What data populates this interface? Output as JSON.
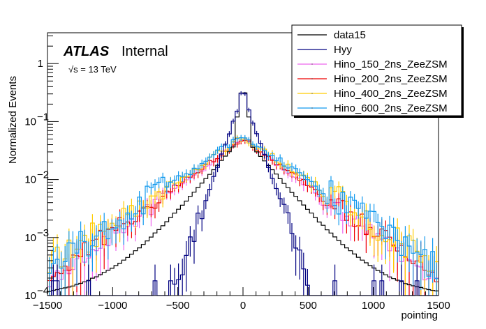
{
  "chart_data": {
    "type": "line",
    "subtype": "step-histogram",
    "title": "",
    "xlabel": "pointing",
    "ylabel": "Normalized Events",
    "xlim": [
      -1500,
      1500
    ],
    "ylim": [
      0.0001,
      3.4
    ],
    "yscale": "log",
    "grid": false,
    "bin_width": 30,
    "x_ticks": [
      "-1500",
      "-1000",
      "-500",
      "0",
      "500",
      "1000",
      "1500"
    ],
    "x_tick_values": [
      -1500,
      -1000,
      -500,
      0,
      500,
      1000,
      1500
    ],
    "y_ticks": [
      {
        "value": 0.0001,
        "base": "10",
        "exp": "-4"
      },
      {
        "value": 0.001,
        "base": "10",
        "exp": "-3"
      },
      {
        "value": 0.01,
        "base": "10",
        "exp": "-2"
      },
      {
        "value": 0.1,
        "base": "10",
        "exp": "-1"
      },
      {
        "value": 1,
        "base": "1",
        "exp": ""
      }
    ],
    "annotations": {
      "experiment": "ATLAS",
      "status": "Internal",
      "energy_sqrt": "√s",
      "energy_rest": " = 13 TeV"
    },
    "legend_position": "top-right",
    "series": [
      {
        "name": "data15",
        "color": "#000000",
        "shape": "laplace",
        "peak": 0.31,
        "peak_core": 0.055,
        "core_slope": 160,
        "tail_slope": 330,
        "tail_floor": 0.00011,
        "noise": 0.03,
        "errors": false
      },
      {
        "name": "Hyy",
        "color": "#000080",
        "shape": "narrow",
        "peak": 0.31,
        "slope": 68,
        "floor": 0.0001,
        "noise": 0.12,
        "errors": true
      },
      {
        "name": "Hino_150_2ns_ZeeZSM",
        "color": "#ee66ee",
        "shape": "laplace",
        "peak": 0.05,
        "slope": 265,
        "floor": 0.0003,
        "noise": 0.18,
        "errors": true
      },
      {
        "name": "Hino_200_2ns_ZeeZSM",
        "color": "#ee0000",
        "shape": "laplace",
        "peak": 0.05,
        "slope": 275,
        "floor": 0.0003,
        "noise": 0.18,
        "errors": true
      },
      {
        "name": "Hino_400_2ns_ZeeZSM",
        "color": "#ffcc00",
        "shape": "laplace",
        "peak": 0.055,
        "slope": 290,
        "floor": 0.0003,
        "noise": 0.28,
        "errors": true
      },
      {
        "name": "Hino_600_2ns_ZeeZSM",
        "color": "#1199ee",
        "shape": "laplace",
        "peak": 0.06,
        "slope": 280,
        "floor": 0.0003,
        "noise": 0.3,
        "errors": true
      }
    ]
  }
}
